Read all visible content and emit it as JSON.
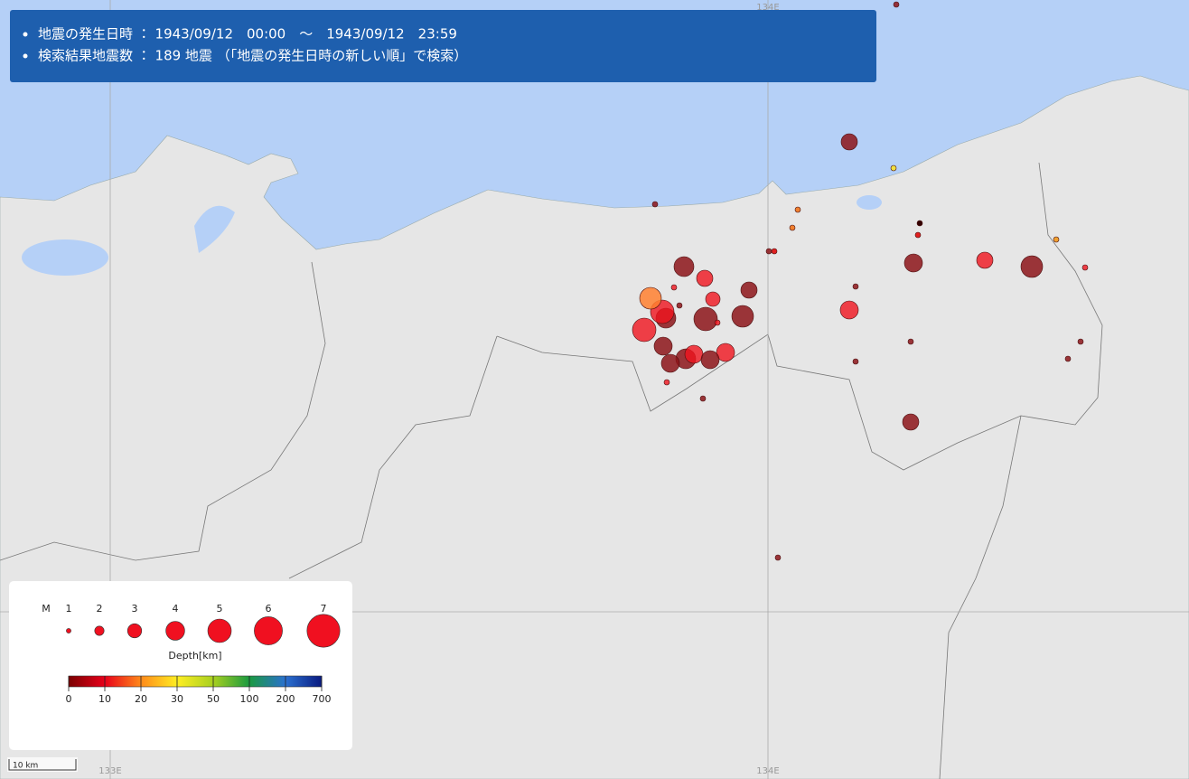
{
  "header": {
    "lines": [
      "地震の発生日時 ： 1943/09/12　00:00　～　1943/09/12　23:59",
      "検索結果地震数 ： 189 地震 （「地震の発生日時の新しい順」で検索）"
    ]
  },
  "grid_labels": {
    "top": [
      "134E"
    ],
    "bottom": [
      "133E",
      "134E"
    ]
  },
  "legend": {
    "magnitude_label": "M",
    "magnitudes": [
      1,
      2,
      3,
      4,
      5,
      6,
      7
    ],
    "depth_label": "Depth[km]",
    "depth_ticks": [
      0,
      10,
      20,
      30,
      50,
      100,
      200,
      700
    ]
  },
  "scale_bar": "10 km"
}
